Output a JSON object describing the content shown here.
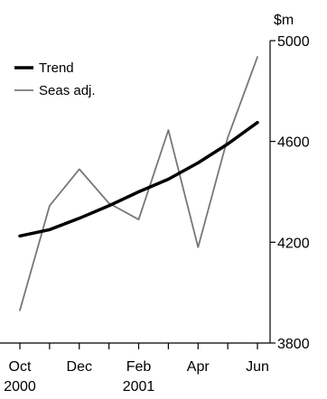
{
  "chart_data": {
    "type": "line",
    "ylabel": "$m",
    "ylim": [
      3800,
      5000
    ],
    "yticks": [
      3800,
      4200,
      4600,
      5000
    ],
    "x": [
      "2000-10",
      "2000-11",
      "2000-12",
      "2001-01",
      "2001-02",
      "2001-03",
      "2001-04",
      "2001-05",
      "2001-06"
    ],
    "xtick_labels": [
      {
        "month": "Oct",
        "year": "2000"
      },
      {
        "month": "Dec",
        "year": ""
      },
      {
        "month": "Feb",
        "year": "2001"
      },
      {
        "month": "Apr",
        "year": ""
      },
      {
        "month": "Jun",
        "year": ""
      }
    ],
    "series": [
      {
        "name": "Trend",
        "color": "#000000",
        "values": [
          4225,
          4250,
          4295,
          4345,
          4400,
          4450,
          4515,
          4590,
          4675
        ]
      },
      {
        "name": "Seas adj.",
        "color": "#777777",
        "values": [
          3930,
          4345,
          4490,
          4355,
          4290,
          4645,
          4180,
          4615,
          4935
        ]
      }
    ],
    "legend_position": "top-left",
    "grid": false
  }
}
